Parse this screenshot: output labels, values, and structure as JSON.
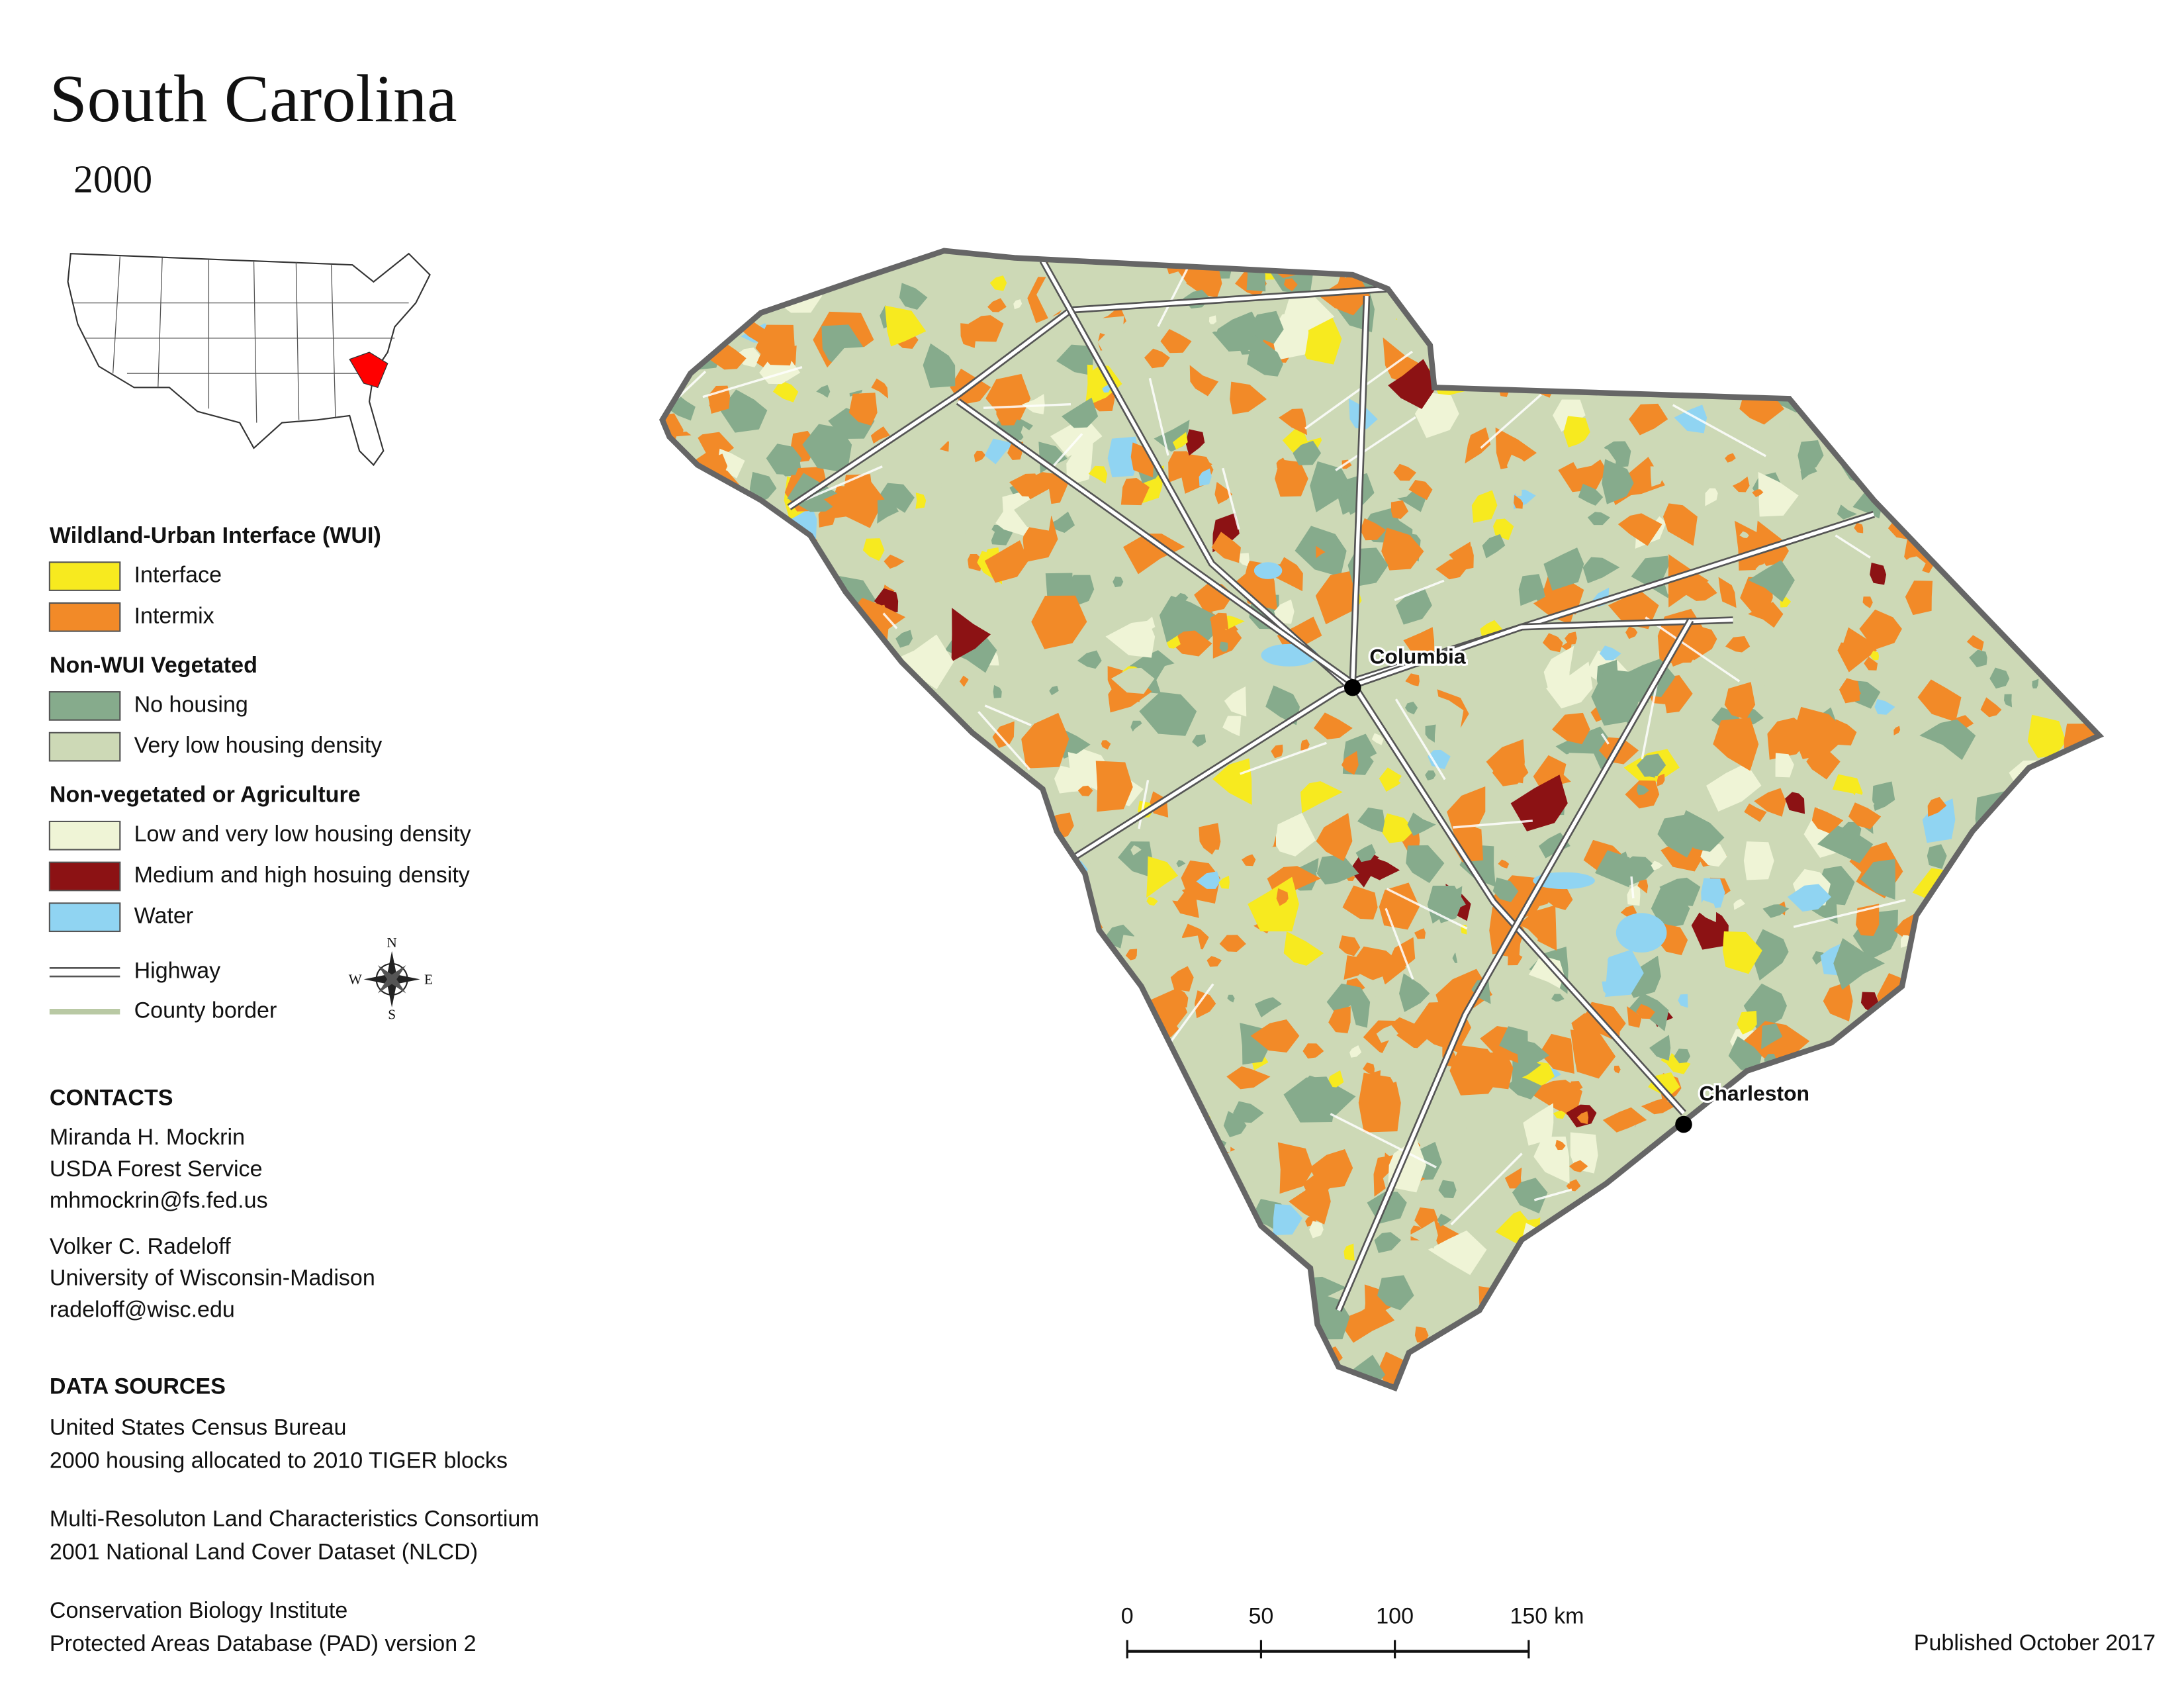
{
  "title": "South Carolina",
  "year": "2000",
  "legend": {
    "sections": [
      {
        "heading": "Wildland-Urban Interface (WUI)",
        "items": [
          {
            "label": "Interface",
            "color": "#f7ea1f"
          },
          {
            "label": "Intermix",
            "color": "#f28a28"
          }
        ]
      },
      {
        "heading": "Non-WUI Vegetated",
        "items": [
          {
            "label": "No housing",
            "color": "#86ab8c"
          },
          {
            "label": "Very low housing density",
            "color": "#cdd9b6"
          }
        ]
      },
      {
        "heading": "Non-vegetated or Agriculture",
        "items": [
          {
            "label": "Low and very low housing density",
            "color": "#eff4d6"
          },
          {
            "label": "Medium and high hosuing density",
            "color": "#8c1214"
          },
          {
            "label": "Water",
            "color": "#90d4f2"
          }
        ]
      }
    ],
    "lines": [
      {
        "label": "Highway"
      },
      {
        "label": "County border"
      }
    ]
  },
  "compass": {
    "n": "N",
    "e": "E",
    "s": "S",
    "w": "W"
  },
  "cities": [
    {
      "name": "Columbia"
    },
    {
      "name": "Charleston"
    }
  ],
  "contacts": {
    "heading": "CONTACTS",
    "people": [
      [
        "Miranda H. Mockrin",
        "USDA Forest Service",
        "mhmockrin@fs.fed.us"
      ],
      [
        "Volker C. Radeloff",
        "University of Wisconsin-Madison",
        "radeloff@wisc.edu"
      ]
    ]
  },
  "data_sources": {
    "heading": "DATA SOURCES",
    "entries": [
      [
        "United States Census Bureau",
        "2000 housing allocated to 2010 TIGER blocks"
      ],
      [
        "Multi-Resoluton Land Characteristics Consortium",
        "2001 National Land Cover Dataset (NLCD)"
      ],
      [
        "Conservation Biology Institute",
        "Protected Areas Database (PAD) version 2"
      ]
    ]
  },
  "scale_bar": {
    "ticks": [
      0,
      50,
      100,
      150
    ],
    "unit": "km"
  },
  "published": "Published October 2017"
}
